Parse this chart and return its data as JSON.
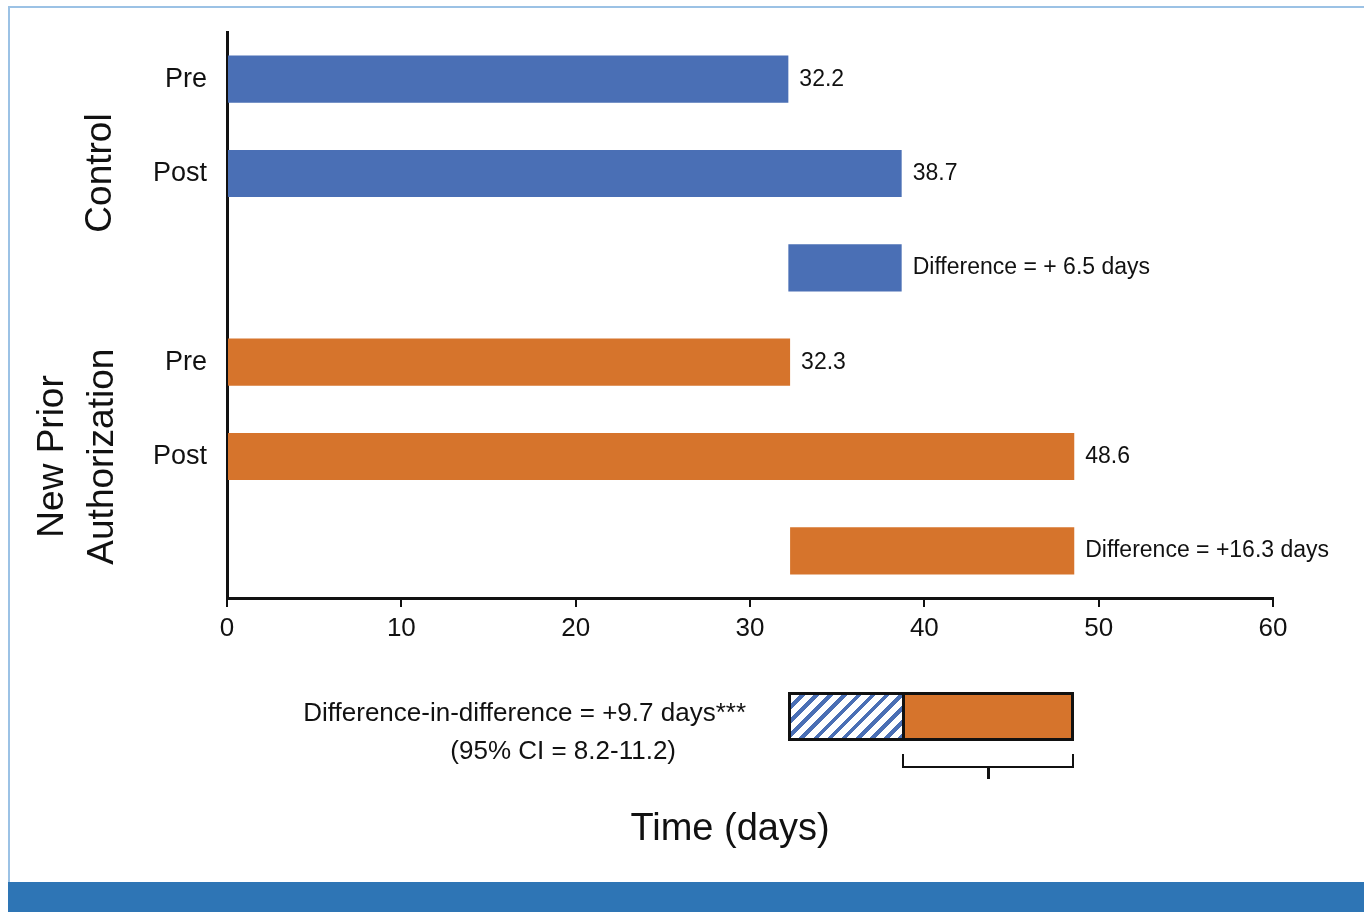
{
  "chart_data": {
    "type": "bar",
    "orientation": "horizontal",
    "categories": [
      "Pre",
      "Post",
      null,
      "Pre",
      "Post",
      null
    ],
    "values": [
      32.2,
      38.7,
      6.5,
      32.3,
      48.6,
      16.3
    ],
    "base": [
      0,
      0,
      32.2,
      0,
      0,
      32.3
    ],
    "colors": [
      "#4a6fb5",
      "#4a6fb5",
      "#4a6fb5",
      "#d6742c",
      "#d6742c",
      "#d6742c"
    ],
    "value_labels": [
      "32.2",
      "38.7",
      "Difference = + 6.5 days",
      "32.3",
      "48.6",
      "Difference = +16.3 days"
    ],
    "xlim": [
      0,
      60
    ],
    "xticks": [
      0,
      10,
      20,
      30,
      40,
      50,
      60
    ],
    "xlabel": "Time (days)",
    "legend": false,
    "annotations": [
      "Control",
      "New Prior Authorization",
      "Difference-in-difference = +9.7 days***",
      "(95% CI = 8.2-11.2)"
    ]
  }
}
